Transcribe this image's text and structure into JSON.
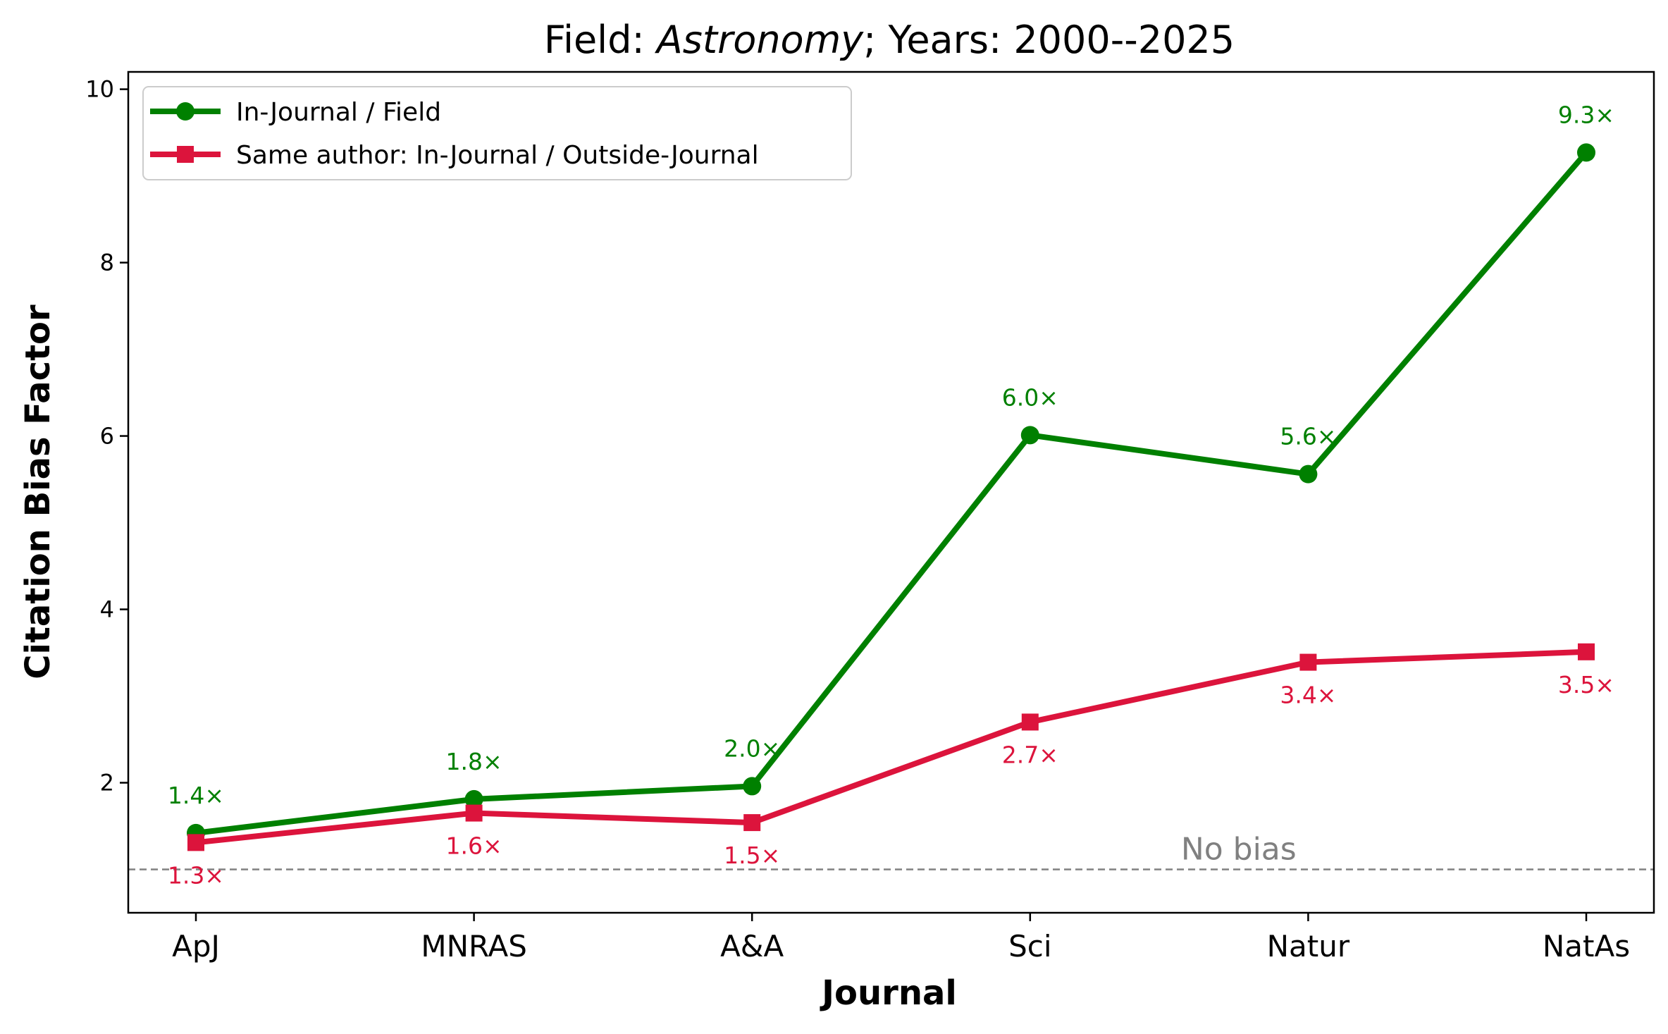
{
  "chart_data": {
    "type": "line",
    "title_prefix": "Field: ",
    "title_field": "Astronomy",
    "title_suffix": "; Years: 2000--2025",
    "xlabel": "Journal",
    "ylabel": "Citation Bias Factor",
    "categories": [
      "ApJ",
      "MNRAS",
      "A&A",
      "Sci",
      "Natur",
      "NatAs"
    ],
    "ylim": [
      0.5,
      10.2
    ],
    "yticks": [
      2,
      4,
      6,
      8,
      10
    ],
    "grid": false,
    "legend_position": "top-left",
    "series": [
      {
        "name": "In-Journal / Field",
        "color": "#008000",
        "marker": "circle",
        "label_position": "above",
        "values": [
          1.42,
          1.81,
          1.96,
          6.01,
          5.56,
          9.27
        ],
        "labels": [
          "1.4×",
          "1.8×",
          "2.0×",
          "6.0×",
          "5.6×",
          "9.3×"
        ]
      },
      {
        "name": "Same author: In-Journal / Outside-Journal",
        "color": "#dc143c",
        "marker": "square",
        "label_position": "below",
        "values": [
          1.31,
          1.65,
          1.54,
          2.7,
          3.39,
          3.51
        ],
        "labels": [
          "1.3×",
          "1.6×",
          "1.5×",
          "2.7×",
          "3.4×",
          "3.5×"
        ]
      }
    ],
    "reference_line": {
      "value": 1.0,
      "label": "No bias",
      "color": "#808080",
      "style": "dashed",
      "label_category_position": 3.75
    }
  }
}
